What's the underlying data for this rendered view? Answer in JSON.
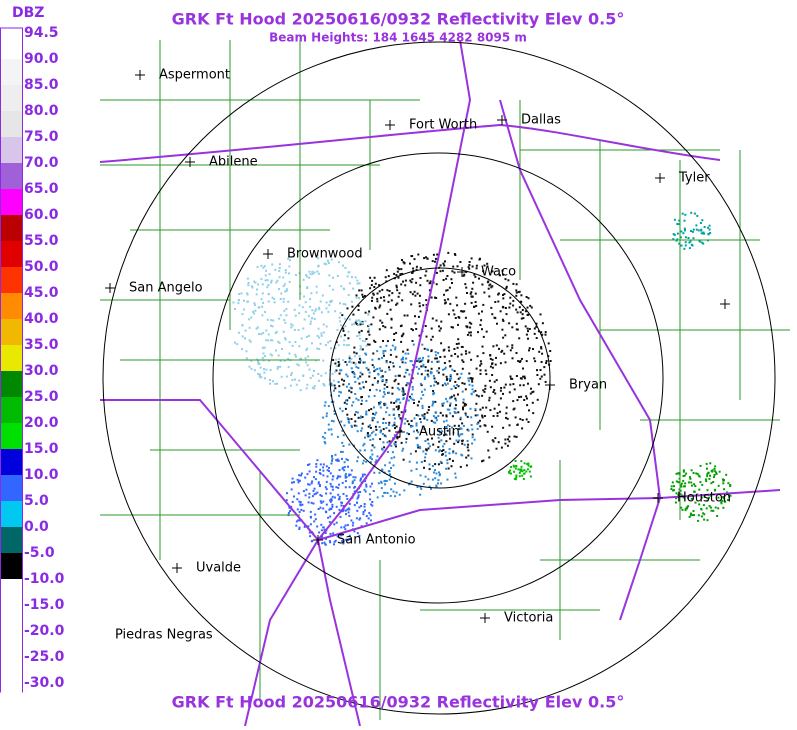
{
  "header": {
    "title": "GRK Ft Hood 20250616/0932 Reflectivity Elev 0.5°",
    "subtitle": "Beam Heights: 184 1645 4282 8095 m"
  },
  "footer": {
    "title": "GRK Ft Hood 20250616/0932 Reflectivity Elev 0.5°"
  },
  "legend": {
    "unit": "DBZ",
    "levels": [
      {
        "label": "94.5",
        "color": "#ffffff"
      },
      {
        "label": "90.0",
        "color": "#f4f4f4"
      },
      {
        "label": "85.0",
        "color": "#eeeeee"
      },
      {
        "label": "80.0",
        "color": "#e6e6e6"
      },
      {
        "label": "75.0",
        "color": "#d7c6ea"
      },
      {
        "label": "70.0",
        "color": "#a060d8"
      },
      {
        "label": "65.0",
        "color": "#ff00ff"
      },
      {
        "label": "60.0",
        "color": "#bb0000"
      },
      {
        "label": "55.0",
        "color": "#e00000"
      },
      {
        "label": "50.0",
        "color": "#ff3300"
      },
      {
        "label": "45.0",
        "color": "#ff8c00"
      },
      {
        "label": "40.0",
        "color": "#f0b800"
      },
      {
        "label": "35.0",
        "color": "#e8e800"
      },
      {
        "label": "30.0",
        "color": "#008800"
      },
      {
        "label": "25.0",
        "color": "#00bb00"
      },
      {
        "label": "20.0",
        "color": "#00e000"
      },
      {
        "label": "15.0",
        "color": "#0000dd"
      },
      {
        "label": "10.0",
        "color": "#3366ff"
      },
      {
        "label": "5.0",
        "color": "#00c8f0"
      },
      {
        "label": "0.0",
        "color": "#006666"
      },
      {
        "label": "-5.0",
        "color": "#000000"
      },
      {
        "label": "-10.0",
        "color": "#ffffff"
      },
      {
        "label": "-15.0",
        "color": "#ffffff"
      },
      {
        "label": "-20.0",
        "color": "#ffffff"
      },
      {
        "label": "-25.0",
        "color": "#ffffff"
      },
      {
        "label": "-30.0",
        "color": "#ffffff"
      }
    ]
  },
  "cities": [
    "Aspermont",
    "Fort Worth",
    "Dallas",
    "Abilene",
    "Tyler",
    "Brownwood",
    "Waco",
    "San Angelo",
    "Bryan",
    "Austin",
    "Houston",
    "San Antonio",
    "Uvalde",
    "Victoria",
    "Piedras Negras"
  ]
}
